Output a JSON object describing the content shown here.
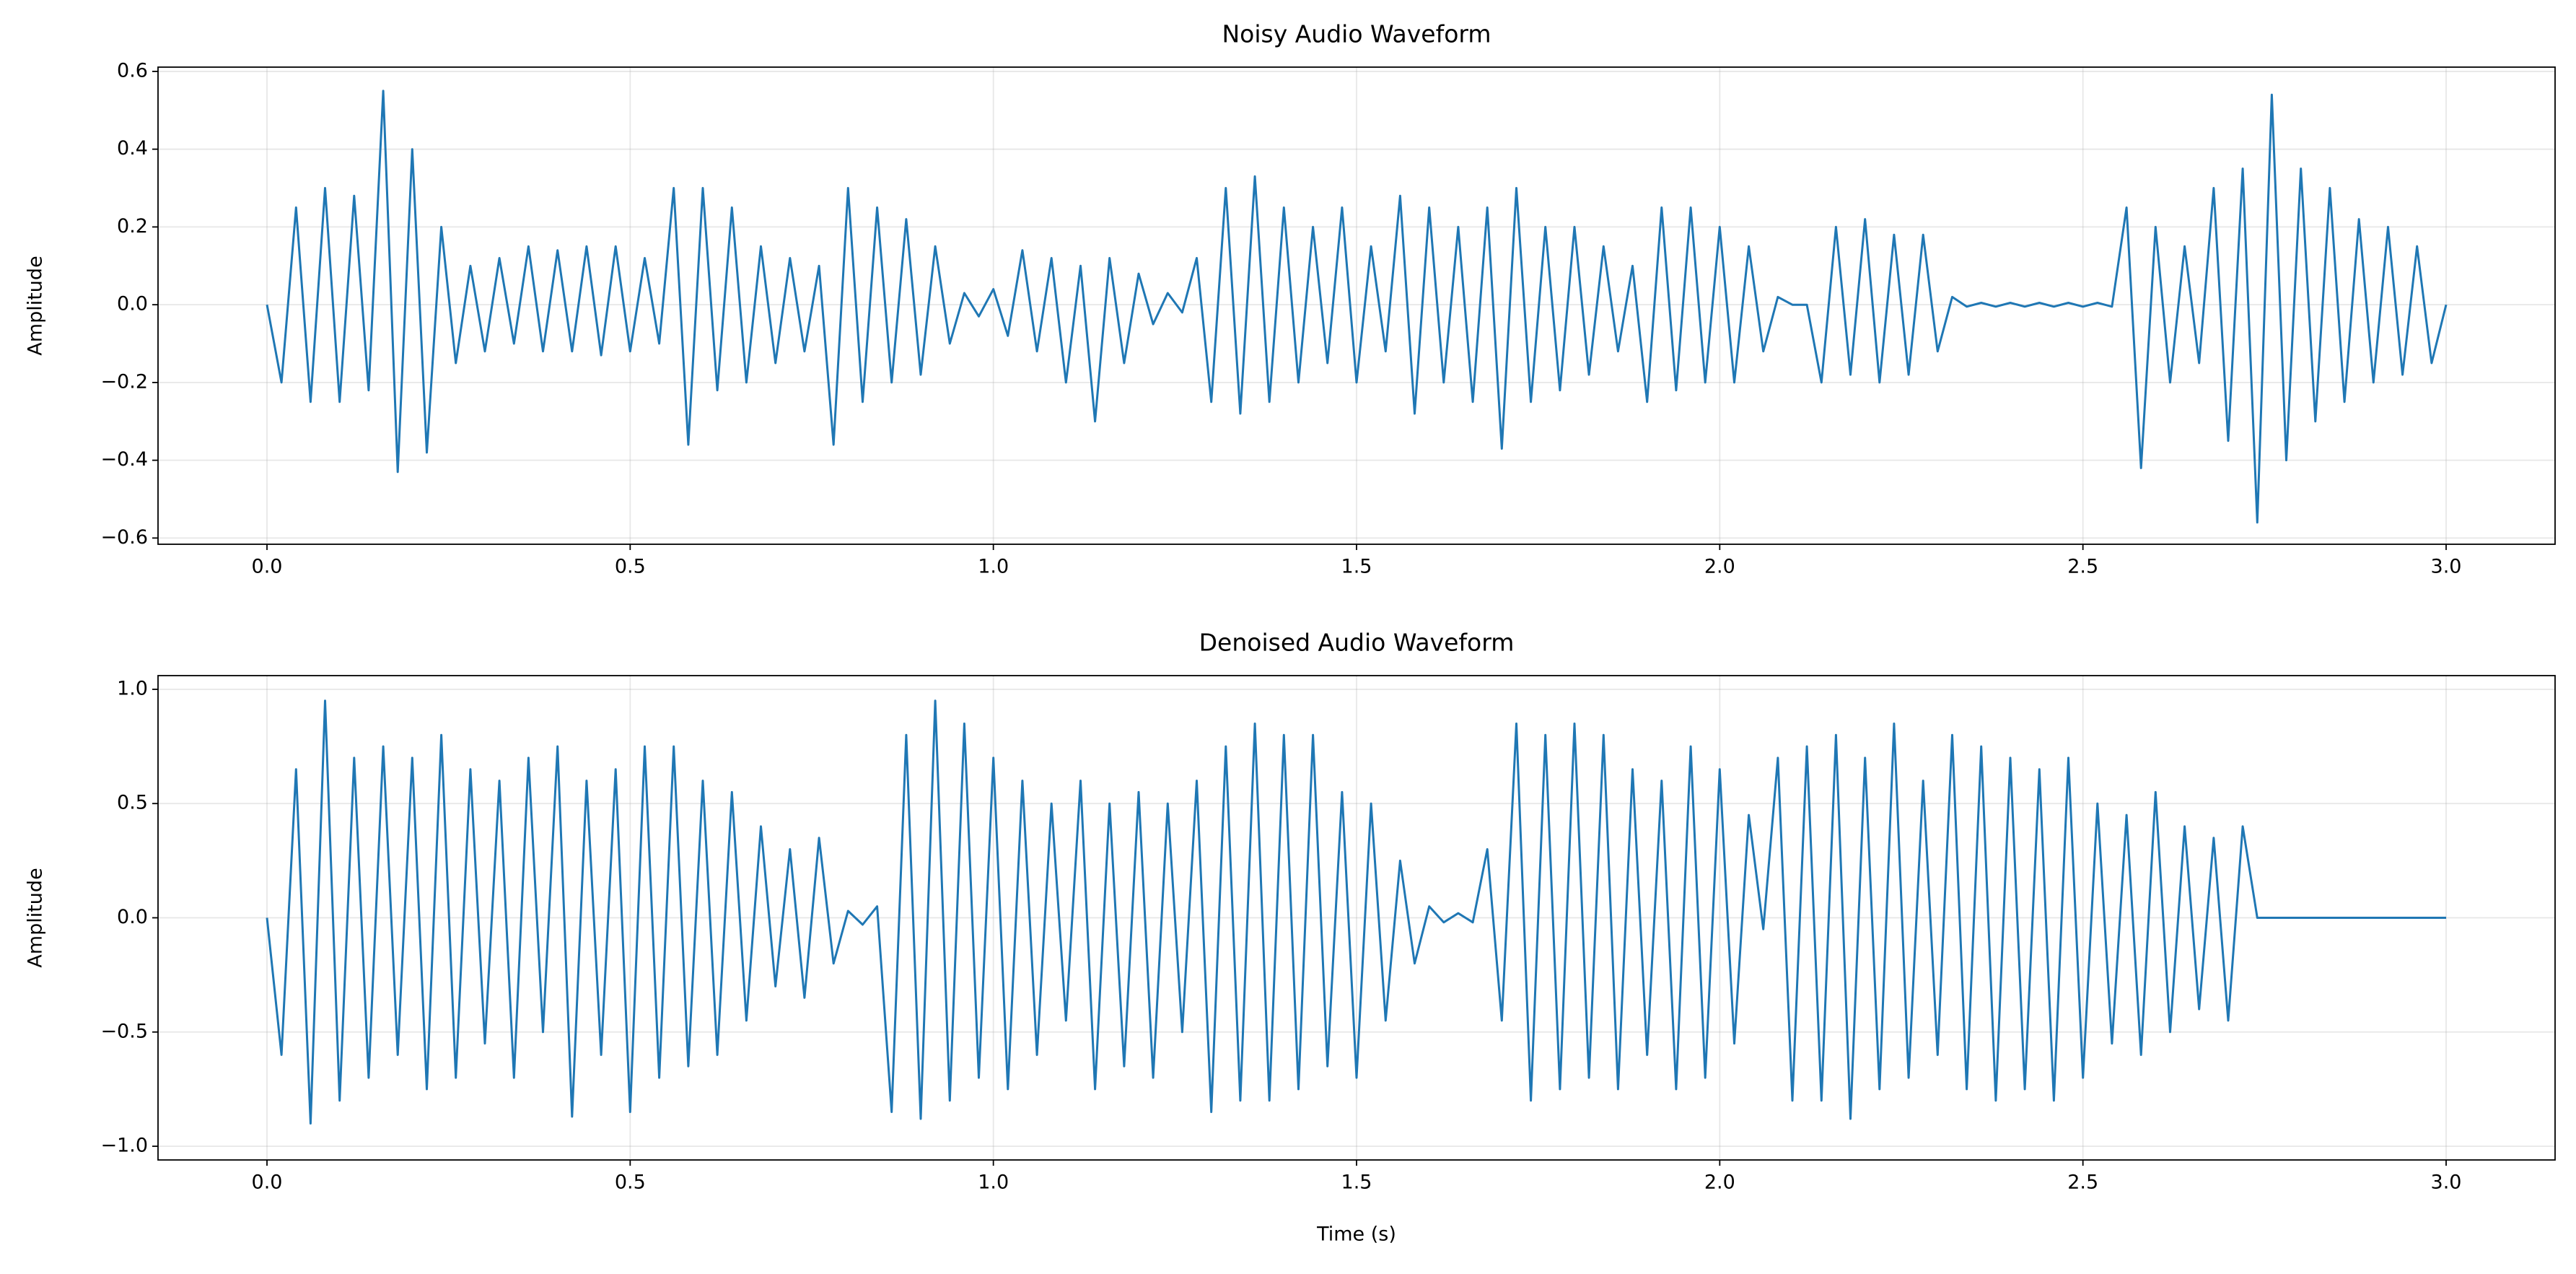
{
  "chart_data": [
    {
      "type": "line",
      "title": "Noisy Audio Waveform",
      "y_label": "Amplitude",
      "color": "#1f77b4",
      "grid": true,
      "xlim": [
        -0.15,
        3.15
      ],
      "ylim": [
        -0.616,
        0.611
      ],
      "xticks": [
        {
          "value": 0,
          "label": "0.0"
        },
        0.5,
        {
          "value": 1,
          "label": "1.0"
        },
        1.5,
        {
          "value": 2,
          "label": "2.0"
        },
        2.5,
        {
          "value": 3,
          "label": "3.0"
        }
      ],
      "yticks": [
        {
          "value": -0.6,
          "label": "−0.6"
        },
        {
          "value": -0.4,
          "label": "−0.4"
        },
        {
          "value": -0.2,
          "label": "−0.2"
        },
        {
          "value": 0,
          "label": "0.0"
        },
        0.2,
        0.4,
        0.6
      ],
      "x": [
        0,
        0.02,
        0.04,
        0.06,
        0.08,
        0.1,
        0.12,
        0.14,
        0.16,
        0.18,
        0.2,
        0.22,
        0.24,
        0.26,
        0.28,
        0.3,
        0.32,
        0.34,
        0.36,
        0.38,
        0.4,
        0.42,
        0.44,
        0.46,
        0.48,
        0.5,
        0.52,
        0.54,
        0.56,
        0.58,
        0.6,
        0.62,
        0.64,
        0.66,
        0.68,
        0.7,
        0.72,
        0.74,
        0.76,
        0.78,
        0.8,
        0.82,
        0.84,
        0.86,
        0.88,
        0.9,
        0.92,
        0.94,
        0.96,
        0.98,
        1,
        1.02,
        1.04,
        1.06,
        1.08,
        1.1,
        1.12,
        1.14,
        1.16,
        1.18,
        1.2,
        1.22,
        1.24,
        1.26,
        1.28,
        1.3,
        1.32,
        1.34,
        1.36,
        1.38,
        1.4,
        1.42,
        1.44,
        1.46,
        1.48,
        1.5,
        1.52,
        1.54,
        1.56,
        1.58,
        1.6,
        1.62,
        1.64,
        1.66,
        1.68,
        1.7,
        1.72,
        1.74,
        1.76,
        1.78,
        1.8,
        1.82,
        1.84,
        1.86,
        1.88,
        1.9,
        1.92,
        1.94,
        1.96,
        1.98,
        2,
        2.02,
        2.04,
        2.06,
        2.08,
        2.1,
        2.12,
        2.14,
        2.16,
        2.18,
        2.2,
        2.22,
        2.24,
        2.26,
        2.28,
        2.3,
        2.32,
        2.34,
        2.36,
        2.38,
        2.4,
        2.42,
        2.44,
        2.46,
        2.48,
        2.5,
        2.52,
        2.54,
        2.56,
        2.58,
        2.6,
        2.62,
        2.64,
        2.66,
        2.68,
        2.7,
        2.72,
        2.74,
        2.76,
        2.78,
        2.8,
        2.82,
        2.84,
        2.86,
        2.88,
        2.9,
        2.92,
        2.94,
        2.96,
        2.98,
        3
      ],
      "values": [
        0,
        -0.2,
        0.25,
        -0.25,
        0.3,
        -0.25,
        0.28,
        -0.22,
        0.55,
        -0.43,
        0.4,
        -0.38,
        0.2,
        -0.15,
        0.1,
        -0.12,
        0.12,
        -0.1,
        0.15,
        -0.12,
        0.14,
        -0.12,
        0.15,
        -0.13,
        0.15,
        -0.12,
        0.12,
        -0.1,
        0.3,
        -0.36,
        0.3,
        -0.22,
        0.25,
        -0.2,
        0.15,
        -0.15,
        0.12,
        -0.12,
        0.1,
        -0.36,
        0.3,
        -0.25,
        0.25,
        -0.2,
        0.22,
        -0.18,
        0.15,
        -0.1,
        0.03,
        -0.03,
        0.04,
        -0.08,
        0.14,
        -0.12,
        0.12,
        -0.2,
        0.1,
        -0.3,
        0.12,
        -0.15,
        0.08,
        -0.05,
        0.03,
        -0.02,
        0.12,
        -0.25,
        0.3,
        -0.28,
        0.33,
        -0.25,
        0.25,
        -0.2,
        0.2,
        -0.15,
        0.25,
        -0.2,
        0.15,
        -0.12,
        0.28,
        -0.28,
        0.25,
        -0.2,
        0.2,
        -0.25,
        0.25,
        -0.37,
        0.3,
        -0.25,
        0.2,
        -0.22,
        0.2,
        -0.18,
        0.15,
        -0.12,
        0.1,
        -0.25,
        0.25,
        -0.22,
        0.25,
        -0.2,
        0.2,
        -0.2,
        0.15,
        -0.12,
        0.02,
        0,
        0,
        -0.2,
        0.2,
        -0.18,
        0.22,
        -0.2,
        0.18,
        -0.18,
        0.18,
        -0.12,
        0.02,
        -0.005,
        0.005,
        -0.005,
        0.005,
        -0.005,
        0.005,
        -0.005,
        0.005,
        -0.005,
        0.005,
        -0.005,
        0.25,
        -0.42,
        0.2,
        -0.2,
        0.15,
        -0.15,
        0.3,
        -0.35,
        0.35,
        -0.56,
        0.54,
        -0.4,
        0.35,
        -0.3,
        0.3,
        -0.25,
        0.22,
        -0.2,
        0.2,
        -0.18,
        0.15,
        -0.15,
        0
      ]
    },
    {
      "type": "line",
      "title": "Denoised Audio Waveform",
      "x_label": "Time (s)",
      "y_label": "Amplitude",
      "color": "#1f77b4",
      "grid": true,
      "xlim": [
        -0.15,
        3.15
      ],
      "ylim": [
        -1.06,
        1.06
      ],
      "xticks": [
        {
          "value": 0,
          "label": "0.0"
        },
        0.5,
        {
          "value": 1,
          "label": "1.0"
        },
        1.5,
        {
          "value": 2,
          "label": "2.0"
        },
        2.5,
        {
          "value": 3,
          "label": "3.0"
        }
      ],
      "yticks": [
        {
          "value": -1,
          "label": "−1.0"
        },
        {
          "value": -0.5,
          "label": "−0.5"
        },
        {
          "value": 0,
          "label": "0.0"
        },
        0.5,
        {
          "value": 1,
          "label": "1.0"
        }
      ],
      "x": [
        0,
        0.02,
        0.04,
        0.06,
        0.08,
        0.1,
        0.12,
        0.14,
        0.16,
        0.18,
        0.2,
        0.22,
        0.24,
        0.26,
        0.28,
        0.3,
        0.32,
        0.34,
        0.36,
        0.38,
        0.4,
        0.42,
        0.44,
        0.46,
        0.48,
        0.5,
        0.52,
        0.54,
        0.56,
        0.58,
        0.6,
        0.62,
        0.64,
        0.66,
        0.68,
        0.7,
        0.72,
        0.74,
        0.76,
        0.78,
        0.8,
        0.82,
        0.84,
        0.86,
        0.88,
        0.9,
        0.92,
        0.94,
        0.96,
        0.98,
        1,
        1.02,
        1.04,
        1.06,
        1.08,
        1.1,
        1.12,
        1.14,
        1.16,
        1.18,
        1.2,
        1.22,
        1.24,
        1.26,
        1.28,
        1.3,
        1.32,
        1.34,
        1.36,
        1.38,
        1.4,
        1.42,
        1.44,
        1.46,
        1.48,
        1.5,
        1.52,
        1.54,
        1.56,
        1.58,
        1.6,
        1.62,
        1.64,
        1.66,
        1.68,
        1.7,
        1.72,
        1.74,
        1.76,
        1.78,
        1.8,
        1.82,
        1.84,
        1.86,
        1.88,
        1.9,
        1.92,
        1.94,
        1.96,
        1.98,
        2,
        2.02,
        2.04,
        2.06,
        2.08,
        2.1,
        2.12,
        2.14,
        2.16,
        2.18,
        2.2,
        2.22,
        2.24,
        2.26,
        2.28,
        2.3,
        2.32,
        2.34,
        2.36,
        2.38,
        2.4,
        2.42,
        2.44,
        2.46,
        2.48,
        2.5,
        2.52,
        2.54,
        2.56,
        2.58,
        2.6,
        2.62,
        2.64,
        2.66,
        2.68,
        2.7,
        2.72,
        2.74,
        2.76,
        2.78,
        2.8,
        2.82,
        2.84,
        2.86,
        2.88,
        2.9,
        2.92,
        2.94,
        2.96,
        2.98,
        3
      ],
      "values": [
        0,
        -0.6,
        0.65,
        -0.9,
        0.95,
        -0.8,
        0.7,
        -0.7,
        0.75,
        -0.6,
        0.7,
        -0.75,
        0.8,
        -0.7,
        0.65,
        -0.55,
        0.6,
        -0.7,
        0.7,
        -0.5,
        0.75,
        -0.87,
        0.6,
        -0.6,
        0.65,
        -0.85,
        0.75,
        -0.7,
        0.75,
        -0.65,
        0.6,
        -0.6,
        0.55,
        -0.45,
        0.4,
        -0.3,
        0.3,
        -0.35,
        0.35,
        -0.2,
        0.03,
        -0.03,
        0.05,
        -0.85,
        0.8,
        -0.88,
        0.95,
        -0.8,
        0.85,
        -0.7,
        0.7,
        -0.75,
        0.6,
        -0.6,
        0.5,
        -0.45,
        0.6,
        -0.75,
        0.5,
        -0.65,
        0.55,
        -0.7,
        0.5,
        -0.5,
        0.6,
        -0.85,
        0.75,
        -0.8,
        0.85,
        -0.8,
        0.8,
        -0.75,
        0.8,
        -0.65,
        0.55,
        -0.7,
        0.5,
        -0.45,
        0.25,
        -0.2,
        0.05,
        -0.02,
        0.02,
        -0.02,
        0.3,
        -0.45,
        0.85,
        -0.8,
        0.8,
        -0.75,
        0.85,
        -0.7,
        0.8,
        -0.75,
        0.65,
        -0.6,
        0.6,
        -0.75,
        0.75,
        -0.7,
        0.65,
        -0.55,
        0.45,
        -0.05,
        0.7,
        -0.8,
        0.75,
        -0.8,
        0.8,
        -0.88,
        0.7,
        -0.75,
        0.85,
        -0.7,
        0.6,
        -0.6,
        0.8,
        -0.75,
        0.75,
        -0.8,
        0.7,
        -0.75,
        0.65,
        -0.8,
        0.7,
        -0.7,
        0.5,
        -0.55,
        0.45,
        -0.6,
        0.55,
        -0.5,
        0.4,
        -0.4,
        0.35,
        -0.45,
        0.4,
        0,
        0,
        0,
        0,
        0,
        0,
        0,
        0,
        0,
        0,
        0,
        0,
        0,
        0
      ]
    }
  ]
}
